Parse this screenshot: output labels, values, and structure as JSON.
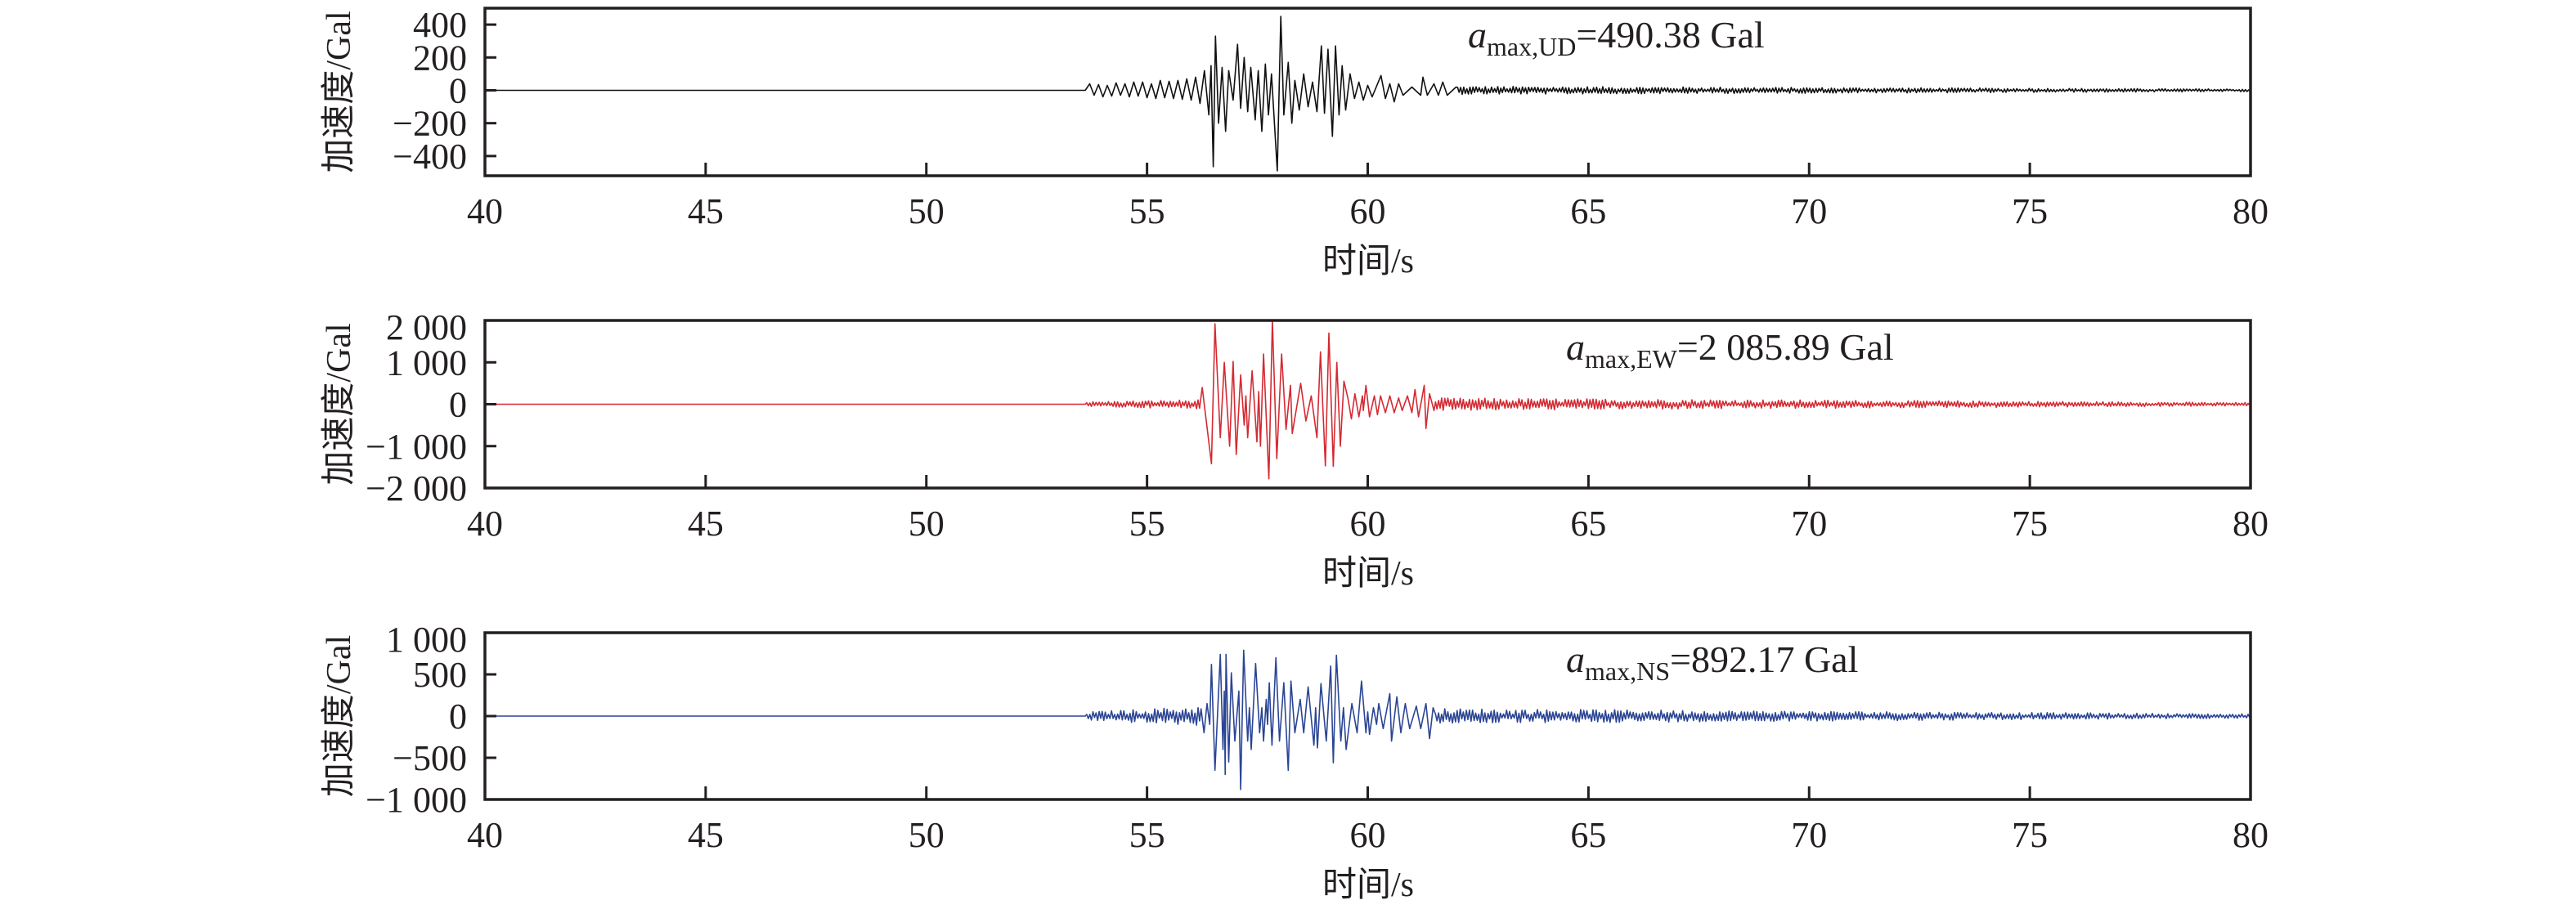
{
  "chart_data": [
    {
      "type": "line",
      "name": "UD",
      "title": "",
      "xlabel": "时间/s",
      "ylabel": "加速度/Gal",
      "xlim": [
        40,
        80
      ],
      "ylim": [
        -520,
        500
      ],
      "xticks": [
        40,
        45,
        50,
        55,
        60,
        65,
        70,
        75,
        80
      ],
      "xtick_labels": [
        "40",
        "45",
        "50",
        "55",
        "60",
        "65",
        "70",
        "75",
        "80"
      ],
      "yticks": [
        400,
        200,
        0,
        -200,
        -400
      ],
      "ytick_labels": [
        "400",
        "200",
        "0",
        "−200",
        "−400"
      ],
      "color": "#111111",
      "annotation": {
        "symbol": "a",
        "subscript": "max,UD",
        "text": "=490.38 Gal"
      },
      "onset": 53.6,
      "pre_noise": null,
      "peaks": [
        [
          53.7,
          40
        ],
        [
          53.8,
          -30
        ],
        [
          53.9,
          35
        ],
        [
          54.0,
          -40
        ],
        [
          54.1,
          30
        ],
        [
          54.2,
          -35
        ],
        [
          54.3,
          45
        ],
        [
          54.4,
          -30
        ],
        [
          54.5,
          40
        ],
        [
          54.6,
          -40
        ],
        [
          54.7,
          50
        ],
        [
          54.8,
          -35
        ],
        [
          54.9,
          50
        ],
        [
          55.0,
          -45
        ],
        [
          55.1,
          40
        ],
        [
          55.2,
          -50
        ],
        [
          55.3,
          60
        ],
        [
          55.4,
          -45
        ],
        [
          55.5,
          55
        ],
        [
          55.6,
          -50
        ],
        [
          55.7,
          60
        ],
        [
          55.8,
          -55
        ],
        [
          55.9,
          70
        ],
        [
          56.0,
          -60
        ],
        [
          56.1,
          80
        ],
        [
          56.2,
          -80
        ],
        [
          56.3,
          120
        ],
        [
          56.4,
          -150
        ],
        [
          56.45,
          150
        ],
        [
          56.5,
          -465
        ],
        [
          56.55,
          330
        ],
        [
          56.62,
          -200
        ],
        [
          56.7,
          140
        ],
        [
          56.78,
          -250
        ],
        [
          56.85,
          120
        ],
        [
          56.95,
          -60
        ],
        [
          57.05,
          280
        ],
        [
          57.12,
          -110
        ],
        [
          57.2,
          200
        ],
        [
          57.28,
          -130
        ],
        [
          57.35,
          140
        ],
        [
          57.45,
          -180
        ],
        [
          57.52,
          120
        ],
        [
          57.6,
          -250
        ],
        [
          57.68,
          160
        ],
        [
          57.75,
          -150
        ],
        [
          57.82,
          100
        ],
        [
          57.95,
          -490
        ],
        [
          58.03,
          450
        ],
        [
          58.1,
          -150
        ],
        [
          58.2,
          170
        ],
        [
          58.28,
          -200
        ],
        [
          58.35,
          60
        ],
        [
          58.45,
          -120
        ],
        [
          58.55,
          100
        ],
        [
          58.65,
          -100
        ],
        [
          58.75,
          50
        ],
        [
          58.85,
          -130
        ],
        [
          58.95,
          270
        ],
        [
          59.02,
          -140
        ],
        [
          59.1,
          250
        ],
        [
          59.2,
          -280
        ],
        [
          59.27,
          270
        ],
        [
          59.35,
          -150
        ],
        [
          59.42,
          150
        ],
        [
          59.5,
          -120
        ],
        [
          59.6,
          100
        ],
        [
          59.7,
          -50
        ],
        [
          59.8,
          50
        ],
        [
          59.9,
          -60
        ],
        [
          60.0,
          30
        ],
        [
          60.1,
          -40
        ],
        [
          60.3,
          90
        ],
        [
          60.4,
          -50
        ],
        [
          60.5,
          40
        ],
        [
          60.6,
          -70
        ],
        [
          60.7,
          40
        ],
        [
          60.8,
          -30
        ],
        [
          61.0,
          20
        ],
        [
          61.2,
          -30
        ],
        [
          61.25,
          80
        ],
        [
          61.35,
          -30
        ],
        [
          61.5,
          40
        ],
        [
          61.6,
          -30
        ],
        [
          61.7,
          50
        ],
        [
          61.8,
          -30
        ],
        [
          62.0,
          20
        ]
      ],
      "coda": {
        "start": 62.0,
        "end": 80,
        "amp_start": 25,
        "amp_end": 8
      }
    },
    {
      "type": "line",
      "name": "EW",
      "title": "",
      "xlabel": "时间/s",
      "ylabel": "加速度/Gal",
      "xlim": [
        40,
        80
      ],
      "ylim": [
        -2000,
        2000
      ],
      "xticks": [
        40,
        45,
        50,
        55,
        60,
        65,
        70,
        75,
        80
      ],
      "xtick_labels": [
        "40",
        "45",
        "50",
        "55",
        "60",
        "65",
        "70",
        "75",
        "80"
      ],
      "yticks": [
        2000,
        1000,
        0,
        -1000,
        -2000
      ],
      "ytick_labels": [
        "2 000",
        "1 000",
        "0",
        "−1 000",
        "−2 000"
      ],
      "color": "#d42a32",
      "annotation": {
        "symbol": "a",
        "subscript": "max,EW",
        "text": "=2 085.89 Gal"
      },
      "onset": 53.6,
      "pre_noise": {
        "start": 53.6,
        "end": 56.2,
        "amp_start": 60,
        "amp_end": 110
      },
      "peaks": [
        [
          56.25,
          400
        ],
        [
          56.46,
          -1420
        ],
        [
          56.54,
          1920
        ],
        [
          56.66,
          -800
        ],
        [
          56.75,
          1000
        ],
        [
          56.87,
          -1000
        ],
        [
          56.95,
          1020
        ],
        [
          57.02,
          -1200
        ],
        [
          57.12,
          700
        ],
        [
          57.2,
          -500
        ],
        [
          57.24,
          200
        ],
        [
          57.28,
          -800
        ],
        [
          57.38,
          800
        ],
        [
          57.49,
          -900
        ],
        [
          57.53,
          300
        ],
        [
          57.57,
          -1000
        ],
        [
          57.64,
          1200
        ],
        [
          57.76,
          -1780
        ],
        [
          57.84,
          2050
        ],
        [
          57.94,
          -1300
        ],
        [
          58.05,
          1200
        ],
        [
          58.15,
          -600
        ],
        [
          58.25,
          450
        ],
        [
          58.29,
          -700
        ],
        [
          58.48,
          500
        ],
        [
          58.6,
          -400
        ],
        [
          58.72,
          200
        ],
        [
          58.85,
          -800
        ],
        [
          58.93,
          1250
        ],
        [
          59.04,
          -1470
        ],
        [
          59.12,
          1700
        ],
        [
          59.22,
          -1480
        ],
        [
          59.3,
          1000
        ],
        [
          59.38,
          -1000
        ],
        [
          59.46,
          550
        ],
        [
          59.55,
          150
        ],
        [
          59.63,
          -350
        ],
        [
          59.71,
          250
        ],
        [
          59.8,
          -300
        ],
        [
          59.88,
          200
        ],
        [
          59.9,
          -150
        ],
        [
          59.96,
          450
        ],
        [
          60.04,
          -300
        ],
        [
          60.15,
          200
        ],
        [
          60.22,
          -250
        ],
        [
          60.29,
          200
        ],
        [
          60.4,
          -200
        ],
        [
          60.5,
          200
        ],
        [
          60.6,
          -200
        ],
        [
          60.7,
          150
        ],
        [
          60.78,
          -150
        ],
        [
          60.9,
          200
        ],
        [
          61.0,
          -200
        ],
        [
          61.07,
          350
        ],
        [
          61.15,
          -300
        ],
        [
          61.28,
          450
        ],
        [
          61.32,
          -580
        ],
        [
          61.4,
          250
        ],
        [
          61.5,
          -150
        ]
      ],
      "coda": {
        "start": 61.5,
        "end": 80,
        "amp_start": 150,
        "amp_end": 40
      }
    },
    {
      "type": "line",
      "name": "NS",
      "title": "",
      "xlabel": "时间/s",
      "ylabel": "加速度/Gal",
      "xlim": [
        40,
        80
      ],
      "ylim": [
        -1000,
        1000
      ],
      "xticks": [
        40,
        45,
        50,
        55,
        60,
        65,
        70,
        75,
        80
      ],
      "xtick_labels": [
        "40",
        "45",
        "50",
        "55",
        "60",
        "65",
        "70",
        "75",
        "80"
      ],
      "yticks": [
        1000,
        500,
        0,
        -500,
        -1000
      ],
      "ytick_labels": [
        "1 000",
        "500",
        "0",
        "−500",
        "−1 000"
      ],
      "color": "#2b4594",
      "annotation": {
        "symbol": "a",
        "subscript": "max,NS",
        "text": "=892.17 Gal"
      },
      "onset": 53.6,
      "pre_noise": {
        "start": 53.6,
        "end": 56.25,
        "amp_start": 50,
        "amp_end": 120
      },
      "peaks": [
        [
          56.29,
          -200
        ],
        [
          56.36,
          150
        ],
        [
          56.42,
          -100
        ],
        [
          56.46,
          620
        ],
        [
          56.54,
          -650
        ],
        [
          56.66,
          740
        ],
        [
          56.72,
          -400
        ],
        [
          56.75,
          300
        ],
        [
          56.77,
          -700
        ],
        [
          56.79,
          740
        ],
        [
          56.85,
          -550
        ],
        [
          56.91,
          520
        ],
        [
          56.99,
          -300
        ],
        [
          57.08,
          300
        ],
        [
          57.12,
          -880
        ],
        [
          57.19,
          790
        ],
        [
          57.28,
          -300
        ],
        [
          57.32,
          100
        ],
        [
          57.36,
          -400
        ],
        [
          57.46,
          630
        ],
        [
          57.55,
          -200
        ],
        [
          57.6,
          100
        ],
        [
          57.64,
          -300
        ],
        [
          57.7,
          200
        ],
        [
          57.73,
          -100
        ],
        [
          57.77,
          400
        ],
        [
          57.83,
          -350
        ],
        [
          57.92,
          700
        ],
        [
          58.0,
          -300
        ],
        [
          58.1,
          400
        ],
        [
          58.2,
          -650
        ],
        [
          58.26,
          420
        ],
        [
          58.35,
          -200
        ],
        [
          58.47,
          200
        ],
        [
          58.55,
          -200
        ],
        [
          58.65,
          350
        ],
        [
          58.78,
          -350
        ],
        [
          58.82,
          100
        ],
        [
          58.86,
          -380
        ],
        [
          58.94,
          390
        ],
        [
          59.06,
          -300
        ],
        [
          59.16,
          600
        ],
        [
          59.22,
          -560
        ],
        [
          59.29,
          730
        ],
        [
          59.39,
          -300
        ],
        [
          59.45,
          100
        ],
        [
          59.51,
          -400
        ],
        [
          59.64,
          150
        ],
        [
          59.76,
          -200
        ],
        [
          59.86,
          420
        ],
        [
          59.96,
          -200
        ],
        [
          60.0,
          50
        ],
        [
          60.04,
          -220
        ],
        [
          60.13,
          100
        ],
        [
          60.2,
          -100
        ],
        [
          60.25,
          150
        ],
        [
          60.35,
          -150
        ],
        [
          60.5,
          270
        ],
        [
          60.54,
          -300
        ],
        [
          60.66,
          230
        ],
        [
          60.75,
          -200
        ],
        [
          60.85,
          150
        ],
        [
          60.95,
          -150
        ],
        [
          61.1,
          120
        ],
        [
          61.2,
          -150
        ],
        [
          61.32,
          150
        ],
        [
          61.4,
          -270
        ],
        [
          61.48,
          100
        ]
      ],
      "coda": {
        "start": 61.5,
        "end": 80,
        "amp_start": 90,
        "amp_end": 25
      }
    }
  ]
}
